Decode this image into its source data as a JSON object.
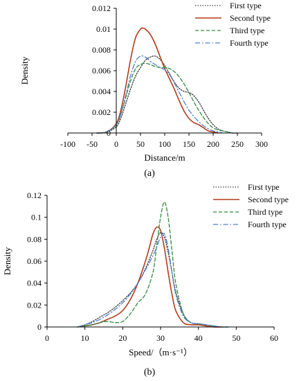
{
  "chart_data": [
    {
      "type": "line",
      "panel_label": "(a)",
      "xlabel": "Distance/m",
      "ylabel": "Density",
      "xlim": [
        -100,
        300
      ],
      "ylim": [
        0,
        0.012
      ],
      "x_ticks": [
        -100,
        -50,
        0,
        50,
        100,
        150,
        200,
        250,
        300
      ],
      "y_ticks": [
        0,
        0.002,
        0.004,
        0.006,
        0.008,
        0.01,
        0.012
      ],
      "x_tick_labels": [
        "-100",
        "-50",
        "0",
        "50",
        "100",
        "150",
        "200",
        "250",
        "300"
      ],
      "y_tick_labels": [
        "0",
        "0.002",
        "0.004",
        "0.006",
        "0.008",
        "0.01",
        "0.012"
      ],
      "grid": false,
      "legend_position": "top-right",
      "series": [
        {
          "name": "First type",
          "color": "#3a3a3a",
          "dash": "dotted",
          "x": [
            -40,
            -20,
            0,
            10,
            20,
            30,
            40,
            50,
            60,
            70,
            80,
            90,
            100,
            110,
            120,
            130,
            140,
            150,
            160,
            170,
            180,
            190,
            200,
            210,
            220,
            230,
            240,
            250
          ],
          "y": [
            0,
            0.0001,
            0.0006,
            0.0015,
            0.0029,
            0.0043,
            0.0055,
            0.0063,
            0.007,
            0.0073,
            0.0074,
            0.0071,
            0.0065,
            0.0057,
            0.0049,
            0.0043,
            0.004,
            0.0039,
            0.0036,
            0.003,
            0.0022,
            0.0014,
            0.0008,
            0.0004,
            0.0002,
            0.0001,
            0,
            0
          ]
        },
        {
          "name": "Second type",
          "color": "#b33a1a",
          "dash": "solid",
          "x": [
            -40,
            -20,
            0,
            10,
            20,
            30,
            40,
            50,
            55,
            60,
            70,
            80,
            90,
            100,
            110,
            120,
            130,
            140,
            150,
            160,
            170,
            180,
            190,
            200,
            210
          ],
          "y": [
            0,
            0.0001,
            0.0009,
            0.0023,
            0.0046,
            0.0072,
            0.0092,
            0.01,
            0.0101,
            0.01,
            0.0095,
            0.0086,
            0.0074,
            0.0062,
            0.0052,
            0.0042,
            0.0031,
            0.0021,
            0.0014,
            0.001,
            0.0008,
            0.0005,
            0.0002,
            0.0001,
            0
          ]
        },
        {
          "name": "Third type",
          "color": "#2e8b3a",
          "dash": "dashed",
          "x": [
            -40,
            -20,
            0,
            10,
            20,
            30,
            40,
            50,
            60,
            70,
            80,
            90,
            100,
            110,
            120,
            130,
            140,
            150,
            160,
            170,
            180,
            190,
            200,
            210,
            220,
            230,
            240,
            250
          ],
          "y": [
            0,
            0.0001,
            0.0008,
            0.0019,
            0.0035,
            0.0051,
            0.0062,
            0.0066,
            0.0067,
            0.0066,
            0.0064,
            0.0063,
            0.0063,
            0.0062,
            0.0059,
            0.0054,
            0.0047,
            0.0039,
            0.003,
            0.0022,
            0.0015,
            0.0009,
            0.0005,
            0.0003,
            0.0002,
            0.0001,
            0,
            0
          ]
        },
        {
          "name": "Fourth type",
          "color": "#4f7fd1",
          "dash": "dashdot",
          "x": [
            -40,
            -20,
            0,
            10,
            20,
            30,
            40,
            50,
            60,
            70,
            80,
            90,
            100,
            110,
            120,
            130,
            140,
            150,
            160,
            170,
            180,
            190,
            200,
            210,
            220
          ],
          "y": [
            0,
            0.0001,
            0.0008,
            0.0019,
            0.0037,
            0.0056,
            0.0069,
            0.0074,
            0.0073,
            0.0069,
            0.0066,
            0.0063,
            0.0061,
            0.0056,
            0.0048,
            0.0039,
            0.003,
            0.0022,
            0.0016,
            0.0011,
            0.0007,
            0.0004,
            0.0002,
            0.0001,
            0
          ]
        }
      ]
    },
    {
      "type": "line",
      "panel_label": "(b)",
      "xlabel": "Speed/（m·s⁻¹）",
      "ylabel": "Density",
      "xlim": [
        0,
        60
      ],
      "ylim": [
        0,
        0.12
      ],
      "x_ticks": [
        0,
        10,
        20,
        30,
        40,
        50,
        60
      ],
      "y_ticks": [
        0,
        0.02,
        0.04,
        0.06,
        0.08,
        0.1,
        0.12
      ],
      "x_tick_labels": [
        "0",
        "10",
        "20",
        "30",
        "40",
        "50",
        "60"
      ],
      "y_tick_labels": [
        "0",
        "0.02",
        "0.04",
        "0.06",
        "0.08",
        "0.1",
        "0.12"
      ],
      "grid": false,
      "legend_position": "top-right",
      "series": [
        {
          "name": "First type",
          "color": "#3a3a3a",
          "dash": "dotted",
          "x": [
            8,
            10,
            12,
            14,
            16,
            18,
            20,
            22,
            24,
            26,
            28,
            29,
            30,
            31,
            32,
            33,
            34,
            36,
            38,
            40,
            42,
            44,
            46,
            48
          ],
          "y": [
            0,
            0.002,
            0.005,
            0.009,
            0.013,
            0.018,
            0.024,
            0.031,
            0.04,
            0.053,
            0.07,
            0.08,
            0.086,
            0.082,
            0.068,
            0.05,
            0.032,
            0.012,
            0.004,
            0.003,
            0.002,
            0.001,
            0,
            0
          ]
        },
        {
          "name": "Second type",
          "color": "#b33a1a",
          "dash": "solid",
          "x": [
            8,
            10,
            12,
            14,
            16,
            18,
            20,
            22,
            24,
            26,
            27,
            28,
            29,
            30,
            31,
            32,
            33,
            34,
            36,
            38,
            40,
            42,
            44,
            46
          ],
          "y": [
            0,
            0.001,
            0.002,
            0.004,
            0.007,
            0.01,
            0.015,
            0.025,
            0.04,
            0.06,
            0.072,
            0.085,
            0.091,
            0.088,
            0.072,
            0.05,
            0.03,
            0.015,
            0.004,
            0.002,
            0.002,
            0.001,
            0,
            0
          ]
        },
        {
          "name": "Third type",
          "color": "#2e8b3a",
          "dash": "dashed",
          "x": [
            8,
            10,
            12,
            14,
            16,
            18,
            20,
            22,
            24,
            26,
            28,
            29,
            30,
            31,
            32,
            33,
            34,
            36,
            38,
            40,
            42,
            44,
            46,
            48
          ],
          "y": [
            0,
            0.001,
            0.002,
            0.004,
            0.005,
            0.004,
            0.005,
            0.012,
            0.022,
            0.03,
            0.05,
            0.075,
            0.1,
            0.114,
            0.1,
            0.07,
            0.04,
            0.012,
            0.004,
            0.003,
            0.002,
            0.001,
            0,
            0
          ]
        },
        {
          "name": "Fourth type",
          "color": "#4f7fd1",
          "dash": "dashdot",
          "x": [
            8,
            10,
            12,
            14,
            16,
            18,
            20,
            22,
            24,
            26,
            28,
            29,
            30,
            31,
            32,
            33,
            34,
            36,
            38,
            40,
            42,
            44,
            46,
            48
          ],
          "y": [
            0,
            0.002,
            0.004,
            0.007,
            0.011,
            0.016,
            0.022,
            0.03,
            0.04,
            0.052,
            0.065,
            0.073,
            0.082,
            0.085,
            0.072,
            0.05,
            0.03,
            0.01,
            0.004,
            0.003,
            0.002,
            0.001,
            0,
            0
          ]
        }
      ]
    }
  ]
}
